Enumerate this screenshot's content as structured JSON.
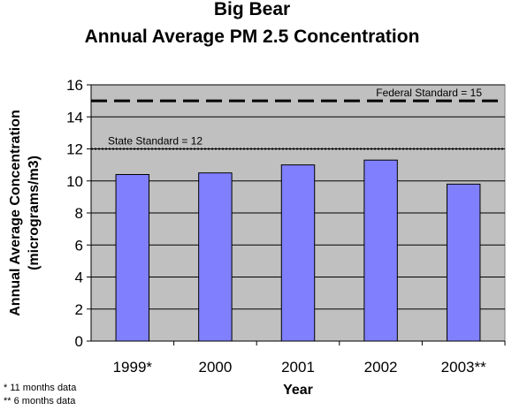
{
  "chart_data": {
    "type": "bar",
    "title": "Big Bear",
    "subtitle": "Annual Average PM 2.5 Concentration",
    "xlabel": "Year",
    "ylabel_line1": "Annual Average Concentration",
    "ylabel_line2": "(micrograms/m3)",
    "categories": [
      "1999*",
      "2000",
      "2001",
      "2002",
      "2003**"
    ],
    "values": [
      10.4,
      10.5,
      11.0,
      11.3,
      9.8
    ],
    "ylim": [
      0,
      16
    ],
    "yticks": [
      "0",
      "2",
      "4",
      "6",
      "8",
      "10",
      "12",
      "14",
      "16"
    ],
    "grid": true,
    "reference_lines": [
      {
        "label": "Federal Standard = 15",
        "value": 15,
        "style": "dashed"
      },
      {
        "label": "State Standard = 12",
        "value": 12,
        "style": "dotted"
      }
    ],
    "footnotes": [
      "* 11 months data",
      "** 6 months data"
    ],
    "colors": {
      "bar": "#8080ff",
      "plot_background": "#c0c0c0",
      "grid": "#000000"
    }
  }
}
